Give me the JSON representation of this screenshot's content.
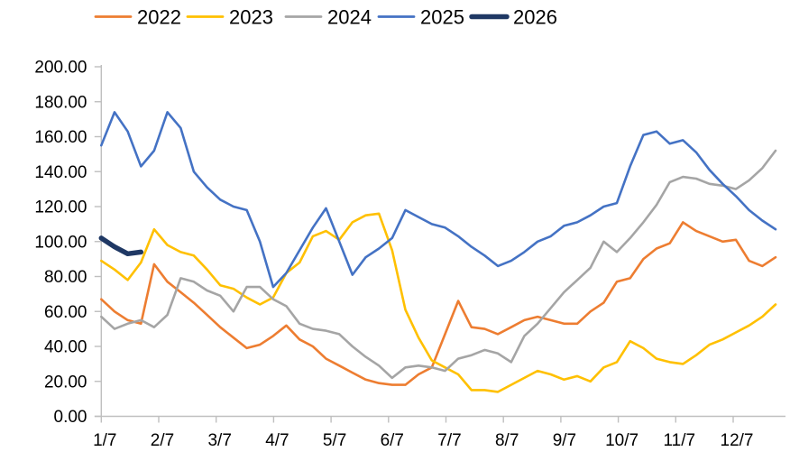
{
  "chart_data": {
    "type": "line",
    "title": "",
    "xlabel": "",
    "ylabel": "",
    "ylim": [
      0,
      200
    ],
    "ytick_step": 20,
    "ytick_labels": [
      "0.00",
      "20.00",
      "40.00",
      "60.00",
      "80.00",
      "100.00",
      "120.00",
      "140.00",
      "160.00",
      "180.00",
      "200.00"
    ],
    "xtick_labels": [
      "1/7",
      "2/7",
      "3/7",
      "4/7",
      "5/7",
      "6/7",
      "7/7",
      "8/7",
      "9/7",
      "10/7",
      "11/7",
      "12/7"
    ],
    "x_unit": "weekly points across one year",
    "grid": "off",
    "legend_position": "top",
    "axis_color": "#BFBFBF",
    "series": [
      {
        "name": "2022",
        "color": "#ED7D31",
        "line_width": 2.6,
        "values": [
          67,
          60,
          55,
          53,
          87,
          77,
          71,
          65,
          58,
          51,
          45,
          39,
          41,
          46,
          52,
          44,
          40,
          33,
          29,
          25,
          21,
          19,
          18,
          18,
          24,
          28,
          47,
          66,
          51,
          50,
          47,
          51,
          55,
          57,
          55,
          53,
          53,
          60,
          65,
          77,
          79,
          90,
          96,
          99,
          111,
          106,
          103,
          100,
          101,
          89,
          86,
          91
        ]
      },
      {
        "name": "2023",
        "color": "#FFC000",
        "line_width": 2.6,
        "values": [
          89,
          84,
          78,
          88,
          107,
          98,
          94,
          92,
          84,
          75,
          73,
          68,
          64,
          68,
          82,
          88,
          103,
          106,
          101,
          111,
          115,
          116,
          95,
          61,
          45,
          32,
          28,
          24,
          15,
          15,
          14,
          18,
          22,
          26,
          24,
          21,
          23,
          20,
          28,
          31,
          43,
          39,
          33,
          31,
          30,
          35,
          41,
          44,
          48,
          52,
          57,
          64
        ]
      },
      {
        "name": "2024",
        "color": "#A5A5A5",
        "line_width": 2.6,
        "values": [
          57,
          50,
          53,
          55,
          51,
          58,
          79,
          77,
          72,
          69,
          60,
          74,
          74,
          67,
          63,
          53,
          50,
          49,
          47,
          40,
          34,
          29,
          22,
          28,
          29,
          28,
          26,
          33,
          35,
          38,
          36,
          31,
          46,
          53,
          62,
          71,
          78,
          85,
          100,
          94,
          102,
          111,
          121,
          134,
          137,
          136,
          133,
          132,
          130,
          135,
          142,
          152
        ]
      },
      {
        "name": "2025",
        "color": "#4472C4",
        "line_width": 2.6,
        "values": [
          155,
          174,
          163,
          143,
          152,
          174,
          165,
          140,
          131,
          124,
          120,
          118,
          100,
          74,
          82,
          95,
          108,
          119,
          100,
          81,
          91,
          96,
          102,
          118,
          114,
          110,
          108,
          103,
          97,
          92,
          86,
          89,
          94,
          100,
          103,
          109,
          111,
          115,
          120,
          122,
          143,
          161,
          163,
          156,
          158,
          151,
          141,
          133,
          126,
          118,
          112,
          107
        ]
      },
      {
        "name": "2026",
        "color": "#1F3864",
        "line_width": 5.5,
        "values": [
          102,
          97,
          93,
          94
        ]
      }
    ]
  },
  "legend": {
    "items": [
      {
        "label": "2022",
        "color": "#ED7D31",
        "thick": false
      },
      {
        "label": "2023",
        "color": "#FFC000",
        "thick": false
      },
      {
        "label": "2024",
        "color": "#A5A5A5",
        "thick": false
      },
      {
        "label": "2025",
        "color": "#4472C4",
        "thick": false
      },
      {
        "label": "2026",
        "color": "#1F3864",
        "thick": true
      }
    ]
  }
}
